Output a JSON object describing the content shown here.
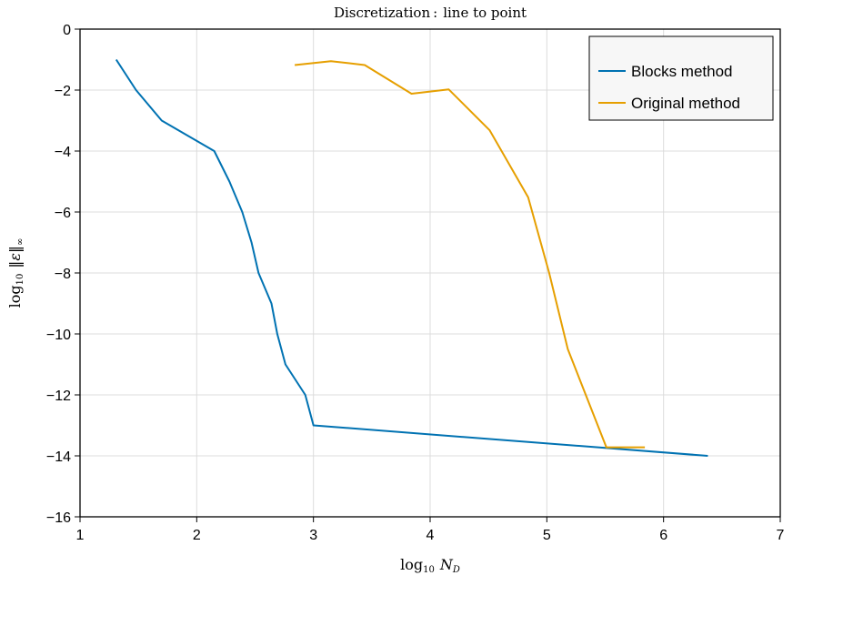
{
  "chart_data": {
    "type": "line",
    "title": "Discretization : line to point",
    "xlabel": "log10 N_D",
    "ylabel": "log10 ||ε||∞",
    "xlim": [
      1,
      7
    ],
    "ylim": [
      -16,
      0
    ],
    "xticks": [
      1,
      2,
      3,
      4,
      5,
      6,
      7
    ],
    "yticks": [
      0,
      -2,
      -4,
      -6,
      -8,
      -10,
      -12,
      -14,
      -16
    ],
    "grid": true,
    "legend": "top-right",
    "series": [
      {
        "name": "Blocks method",
        "color": "#0072b2",
        "x": [
          1.31,
          1.48,
          1.7,
          2.15,
          2.28,
          2.39,
          2.47,
          2.53,
          2.64,
          2.69,
          2.76,
          2.93,
          3.0,
          6.38
        ],
        "y": [
          -1.0,
          -2.0,
          -3.0,
          -4.0,
          -5.0,
          -6.0,
          -7.0,
          -8.0,
          -9.0,
          -10.0,
          -11.0,
          -12.0,
          -13.0,
          -14.0
        ]
      },
      {
        "name": "Original method",
        "color": "#e69f00",
        "x": [
          2.84,
          3.15,
          3.44,
          3.84,
          4.16,
          4.51,
          4.84,
          5.02,
          5.18,
          5.51,
          5.84
        ],
        "y": [
          -1.18,
          -1.05,
          -1.18,
          -2.12,
          -1.98,
          -3.32,
          -5.52,
          -8.0,
          -10.5,
          -13.72,
          -13.72
        ]
      }
    ]
  }
}
